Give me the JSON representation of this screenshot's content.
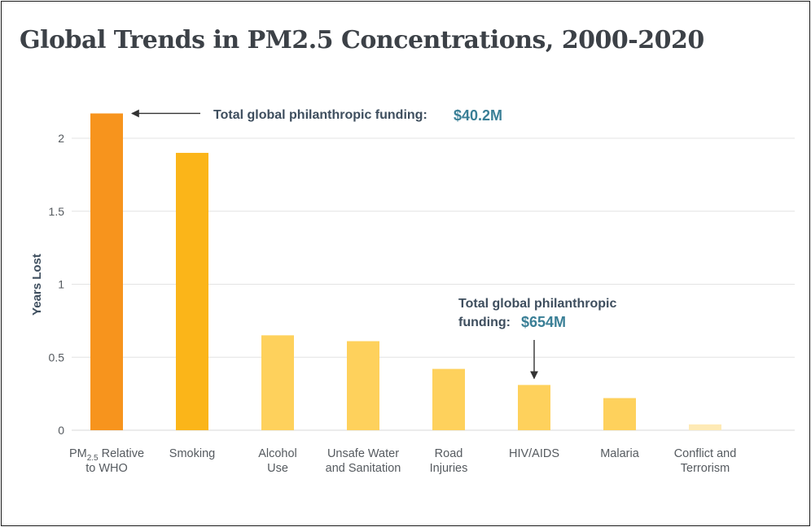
{
  "chart_data": {
    "type": "bar",
    "title": "Global Trends in PM2.5 Concentrations, 2000-2020",
    "ylabel": "Years Lost",
    "xlabel": "",
    "ylim": [
      0,
      2.2
    ],
    "yticks": [
      0,
      0.5,
      1,
      1.5,
      2
    ],
    "ytick_labels": [
      "0",
      "0.5",
      "1",
      "1.5",
      "2"
    ],
    "grid": true,
    "categories": [
      {
        "lines": [
          "PM",
          "Relative",
          "to WHO"
        ],
        "subscript": "2.5"
      },
      {
        "lines": [
          "Smoking"
        ]
      },
      {
        "lines": [
          "Alcohol",
          "Use"
        ]
      },
      {
        "lines": [
          "Unsafe Water",
          "and Sanitation"
        ]
      },
      {
        "lines": [
          "Road",
          "Injuries"
        ]
      },
      {
        "lines": [
          "HIV/AIDS"
        ]
      },
      {
        "lines": [
          "Malaria"
        ]
      },
      {
        "lines": [
          "Conflict and",
          "Terrorism"
        ]
      }
    ],
    "values": [
      2.17,
      1.9,
      0.65,
      0.61,
      0.42,
      0.31,
      0.22,
      0.04
    ],
    "bar_colors": [
      "#f7941d",
      "#fbb519",
      "#fed15c",
      "#fed15c",
      "#fed15c",
      "#fed15c",
      "#fed15c",
      "#feeab5"
    ],
    "annotations": [
      {
        "target": 0,
        "text": "Total global philanthropic funding:",
        "value": "$40.2M"
      },
      {
        "target": 5,
        "text_lines": [
          "Total global philanthropic",
          "funding:"
        ],
        "value": "$654M"
      }
    ]
  }
}
